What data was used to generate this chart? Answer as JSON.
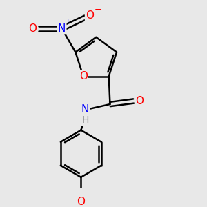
{
  "background_color": "#e8e8e8",
  "atom_colors": {
    "C": "#000000",
    "N": "#0000ff",
    "O": "#ff0000",
    "H": "#808080"
  },
  "bond_color": "#000000",
  "bond_width": 1.8,
  "figsize": [
    3.0,
    3.0
  ],
  "dpi": 100,
  "xlim": [
    0,
    3.0
  ],
  "ylim": [
    0,
    3.0
  ]
}
